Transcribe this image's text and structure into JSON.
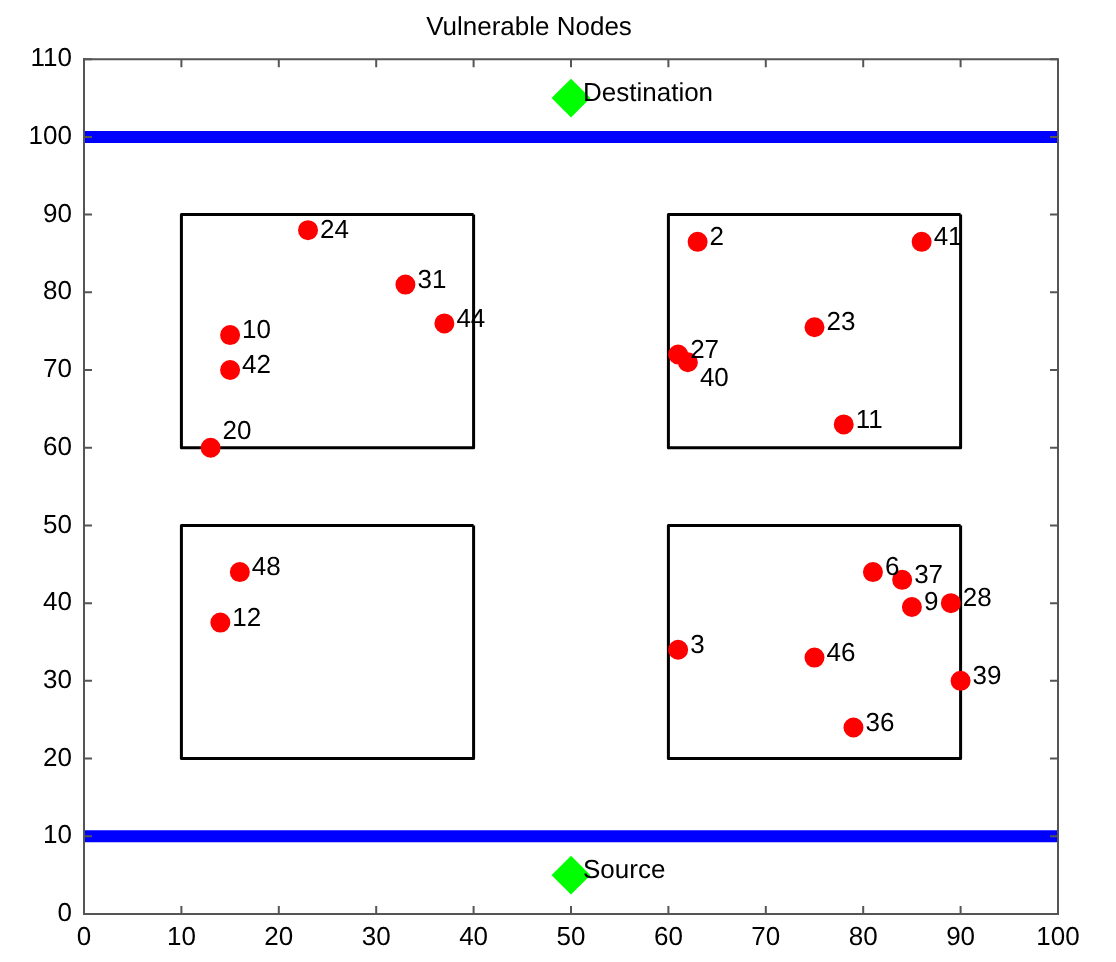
{
  "chart_data": {
    "type": "scatter",
    "title": "Vulnerable Nodes",
    "xlim": [
      0,
      100
    ],
    "xticks": [
      0,
      10,
      20,
      30,
      40,
      50,
      60,
      70,
      80,
      90,
      100
    ],
    "ylim": [
      0,
      110
    ],
    "yticks": [
      0,
      10,
      20,
      30,
      40,
      50,
      60,
      70,
      80,
      90,
      100,
      110
    ],
    "grid": false,
    "legend": false,
    "series": [
      {
        "type": "line",
        "color": "#000000",
        "marker": "none",
        "x": [
          10,
          40,
          40
        ],
        "values": [
          60,
          60,
          90
        ]
      },
      {
        "type": "line",
        "color": "#000000",
        "marker": "none",
        "x": [
          40,
          10,
          10
        ],
        "values": [
          90,
          90,
          60
        ]
      },
      {
        "type": "line",
        "color": "#000000",
        "marker": "none",
        "x": [
          60,
          90,
          90
        ],
        "values": [
          60,
          60,
          90
        ]
      },
      {
        "type": "line",
        "color": "#000000",
        "marker": "none",
        "x": [
          90,
          60,
          60
        ],
        "values": [
          90,
          90,
          60
        ]
      },
      {
        "type": "line",
        "color": "#000000",
        "marker": "none",
        "x": [
          10,
          40,
          40
        ],
        "values": [
          20,
          20,
          50
        ]
      },
      {
        "type": "line",
        "color": "#000000",
        "marker": "none",
        "x": [
          40,
          10,
          10
        ],
        "values": [
          50,
          50,
          20
        ]
      },
      {
        "type": "line",
        "color": "#000000",
        "marker": "none",
        "x": [
          60,
          90,
          90
        ],
        "values": [
          20,
          20,
          50
        ]
      },
      {
        "type": "line",
        "color": "#000000",
        "marker": "none",
        "x": [
          90,
          60,
          60
        ],
        "values": [
          50,
          50,
          20
        ]
      },
      {
        "type": "scatter",
        "color": "#ff0000",
        "marker": "circle",
        "x": [
          23,
          33,
          37,
          15,
          15,
          13,
          63,
          86,
          75,
          61,
          62,
          78,
          16,
          14,
          61,
          75,
          79,
          81,
          84,
          85,
          89,
          90
        ],
        "values": [
          88,
          81,
          76,
          74.5,
          70,
          60,
          86.5,
          86.5,
          75.5,
          72,
          71,
          63,
          44,
          37.5,
          34,
          33,
          24,
          44,
          43,
          39.5,
          40,
          30
        ]
      },
      {
        "type": "scatter",
        "color": "#00ff00",
        "marker": "diamond",
        "x": [
          50,
          50
        ],
        "values": [
          105,
          5
        ]
      }
    ],
    "ref_lines": [
      {
        "axis": "y",
        "value": 100,
        "color": "#0000ff"
      },
      {
        "axis": "y",
        "value": 10,
        "color": "#0000ff"
      }
    ],
    "annotations": [
      {
        "text": "24",
        "x": 23,
        "y": 88
      },
      {
        "text": "31",
        "x": 33,
        "y": 81
      },
      {
        "text": "44",
        "x": 37,
        "y": 76
      },
      {
        "text": "10",
        "x": 15,
        "y": 74.5
      },
      {
        "text": "42",
        "x": 15,
        "y": 70
      },
      {
        "text": "20",
        "x": 13,
        "y": 60
      },
      {
        "text": "2",
        "x": 63,
        "y": 86.5
      },
      {
        "text": "41",
        "x": 86,
        "y": 86.5
      },
      {
        "text": "23",
        "x": 75,
        "y": 75.5
      },
      {
        "text": "27",
        "x": 61,
        "y": 72
      },
      {
        "text": "40",
        "x": 62,
        "y": 71
      },
      {
        "text": "11",
        "x": 78,
        "y": 63
      },
      {
        "text": "48",
        "x": 16,
        "y": 44
      },
      {
        "text": "12",
        "x": 14,
        "y": 37.5
      },
      {
        "text": "3",
        "x": 61,
        "y": 34
      },
      {
        "text": "46",
        "x": 75,
        "y": 33
      },
      {
        "text": "36",
        "x": 79,
        "y": 24
      },
      {
        "text": "6",
        "x": 81,
        "y": 44
      },
      {
        "text": "37",
        "x": 84,
        "y": 43
      },
      {
        "text": "9",
        "x": 85,
        "y": 39.5
      },
      {
        "text": "28",
        "x": 89,
        "y": 40
      },
      {
        "text": "39",
        "x": 90,
        "y": 30
      },
      {
        "text": "Destination",
        "x": 50,
        "y": 105
      },
      {
        "text": "Source",
        "x": 50,
        "y": 5
      }
    ]
  }
}
